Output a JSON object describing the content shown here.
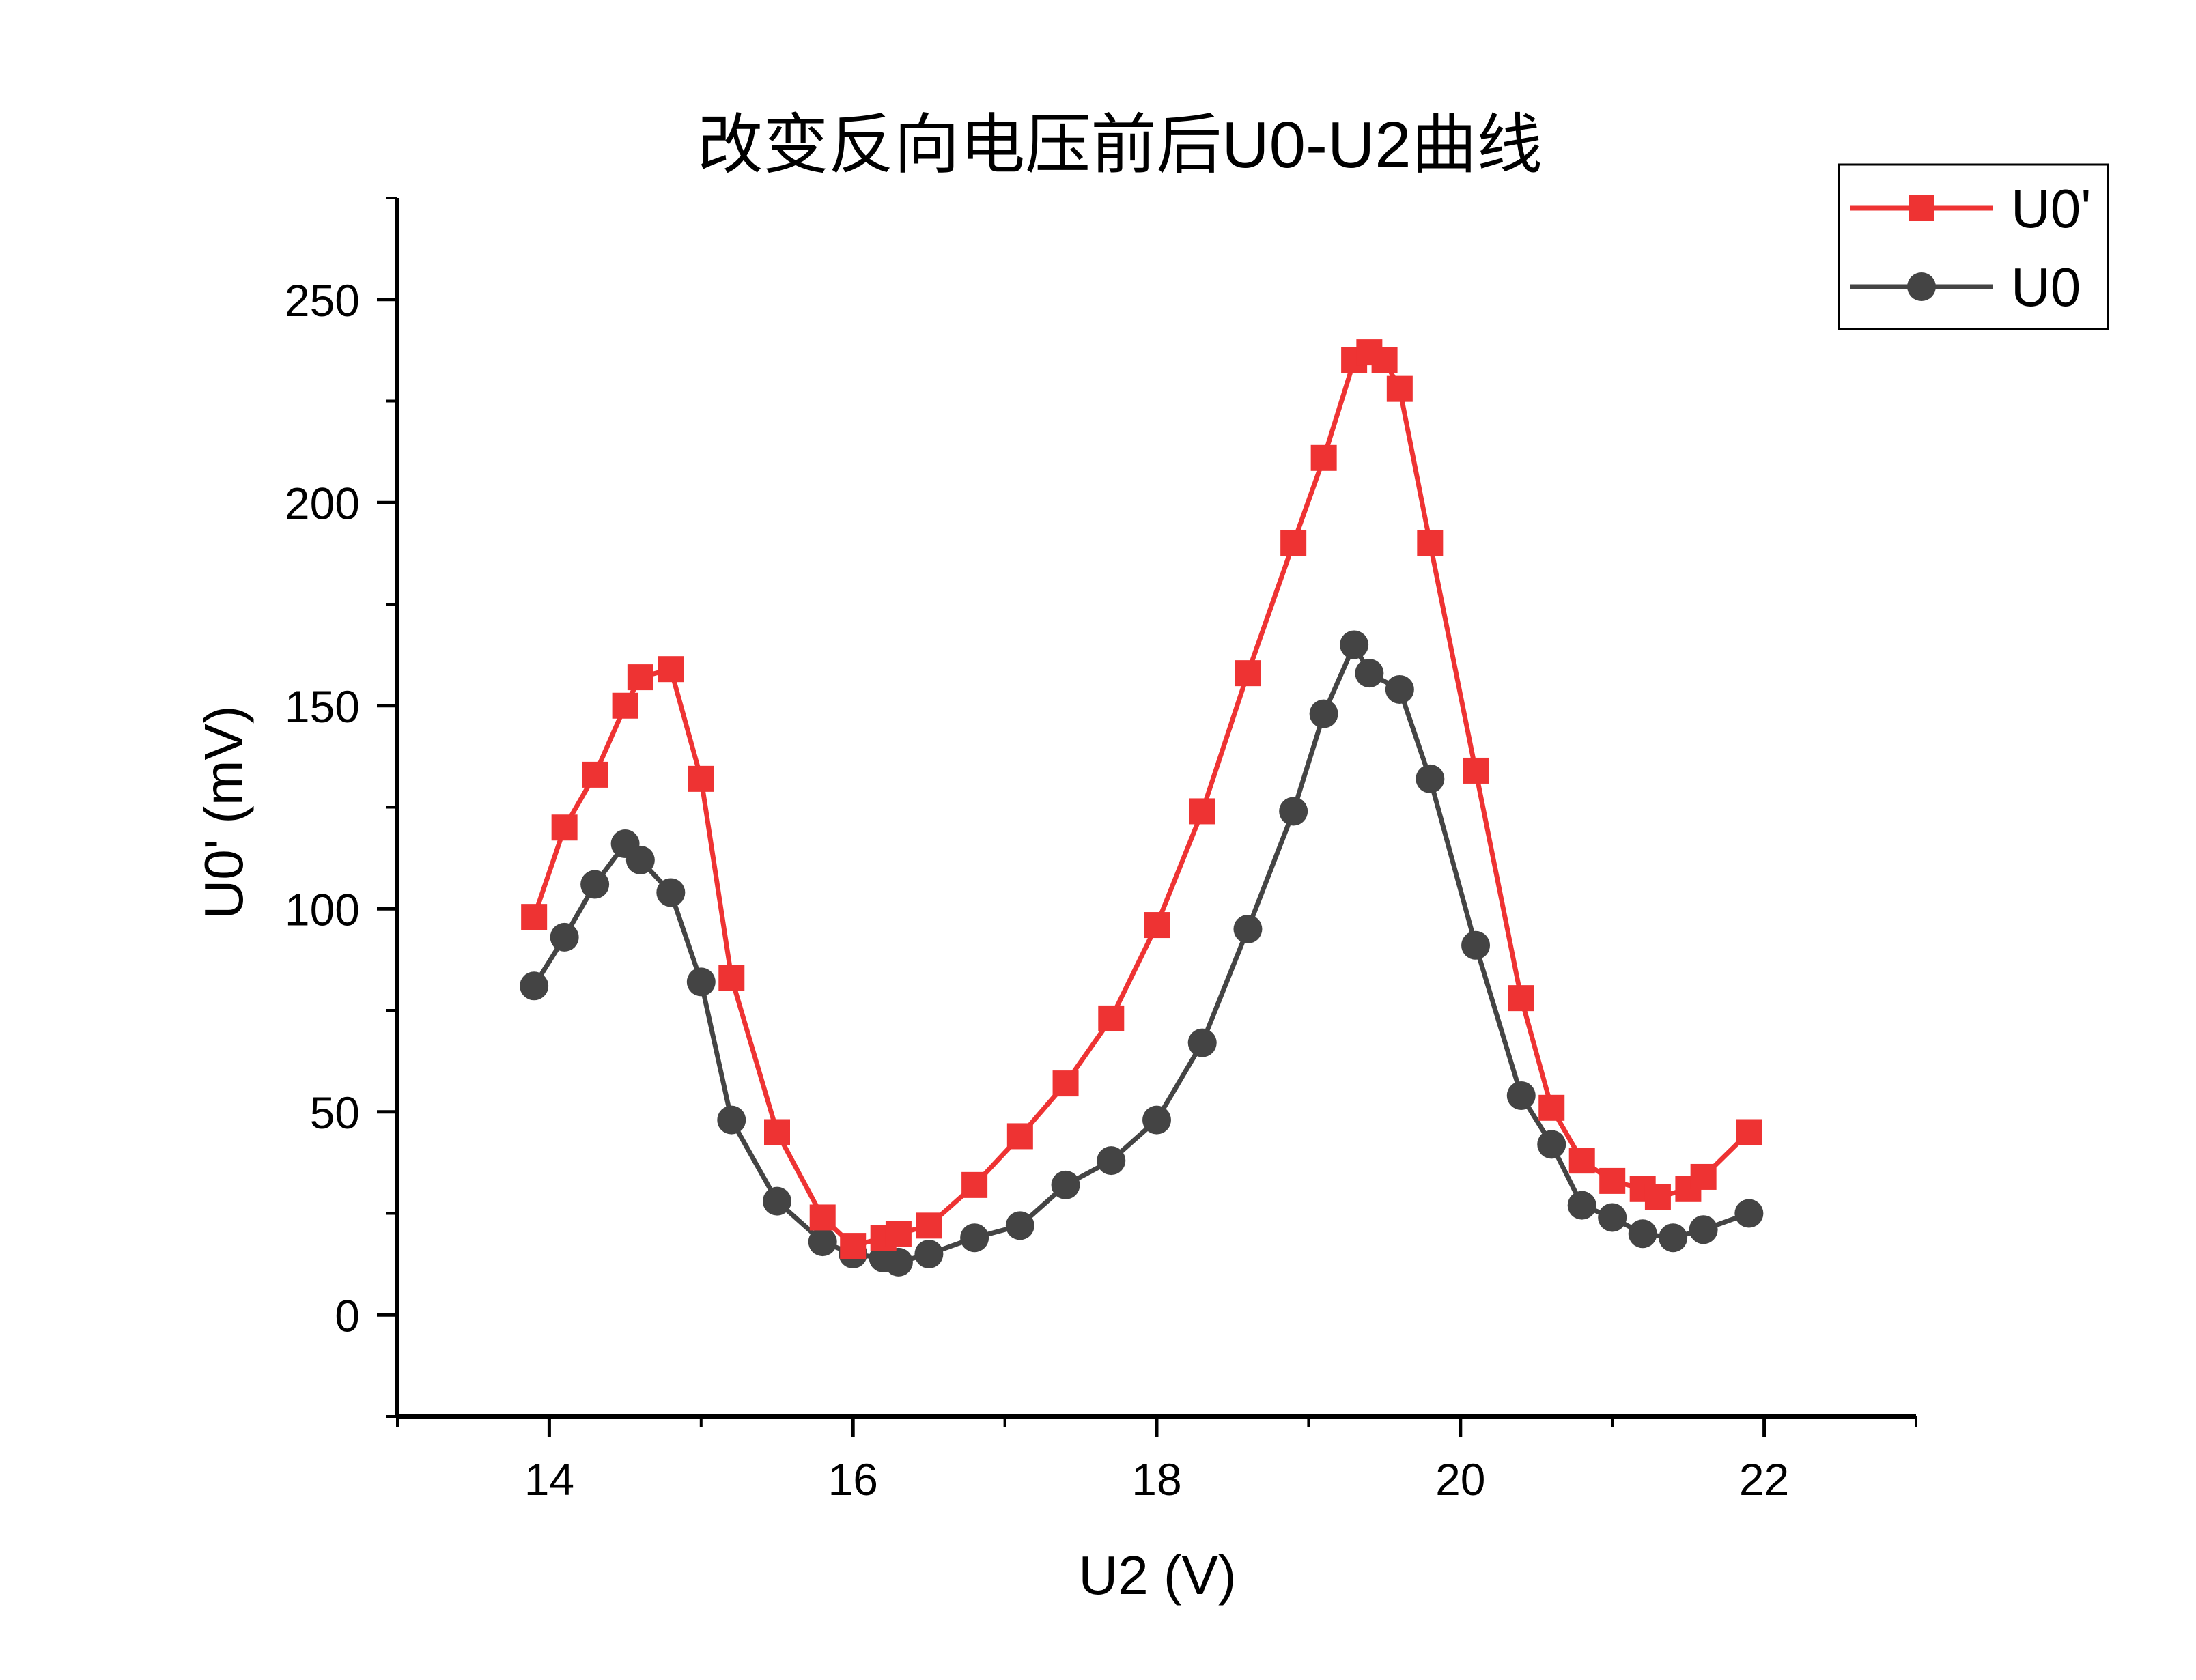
{
  "chart_data": {
    "type": "line",
    "title": "改变反向电压前后U0-U2曲线",
    "xlabel": "U2 (V)",
    "ylabel": "U0' (mV)",
    "xlim": [
      13,
      23
    ],
    "ylim": [
      -25,
      275
    ],
    "xticks": [
      14,
      16,
      18,
      20,
      22
    ],
    "yticks": [
      0,
      50,
      100,
      150,
      200,
      250
    ],
    "xtick_labels": [
      "14",
      "16",
      "18",
      "20",
      "22"
    ],
    "ytick_labels": [
      "0",
      "50",
      "100",
      "150",
      "200",
      "250"
    ],
    "legend_position": "top-right",
    "grid": false,
    "series": [
      {
        "name": "U0'",
        "color": "#ee3333",
        "marker": "square",
        "x": [
          13.9,
          14.1,
          14.3,
          14.5,
          14.6,
          14.8,
          15.0,
          15.2,
          15.5,
          15.8,
          16.0,
          16.2,
          16.3,
          16.5,
          16.8,
          17.1,
          17.4,
          17.7,
          18.0,
          18.3,
          18.6,
          18.9,
          19.1,
          19.3,
          19.4,
          19.5,
          19.6,
          19.8,
          20.1,
          20.4,
          20.6,
          20.8,
          21.0,
          21.2,
          21.3,
          21.5,
          21.6,
          21.9
        ],
        "y": [
          98,
          120,
          133,
          150,
          157,
          159,
          132,
          83,
          45,
          24,
          17,
          19,
          20,
          22,
          32,
          44,
          57,
          73,
          96,
          124,
          158,
          190,
          211,
          235,
          237,
          235,
          228,
          190,
          134,
          78,
          51,
          38,
          33,
          31,
          29,
          31,
          34,
          45
        ]
      },
      {
        "name": "U0",
        "color": "#444444",
        "marker": "circle",
        "x": [
          13.9,
          14.1,
          14.3,
          14.5,
          14.6,
          14.8,
          15.0,
          15.2,
          15.5,
          15.8,
          16.0,
          16.2,
          16.3,
          16.5,
          16.8,
          17.1,
          17.4,
          17.7,
          18.0,
          18.3,
          18.6,
          18.9,
          19.1,
          19.3,
          19.4,
          19.6,
          19.8,
          20.1,
          20.4,
          20.6,
          20.8,
          21.0,
          21.2,
          21.4,
          21.6,
          21.9
        ],
        "y": [
          81,
          93,
          106,
          116,
          112,
          104,
          82,
          48,
          28,
          18,
          15,
          14,
          13,
          15,
          19,
          22,
          32,
          38,
          48,
          67,
          95,
          124,
          148,
          165,
          158,
          154,
          132,
          91,
          54,
          42,
          27,
          24,
          20,
          19,
          21,
          25
        ]
      }
    ]
  }
}
